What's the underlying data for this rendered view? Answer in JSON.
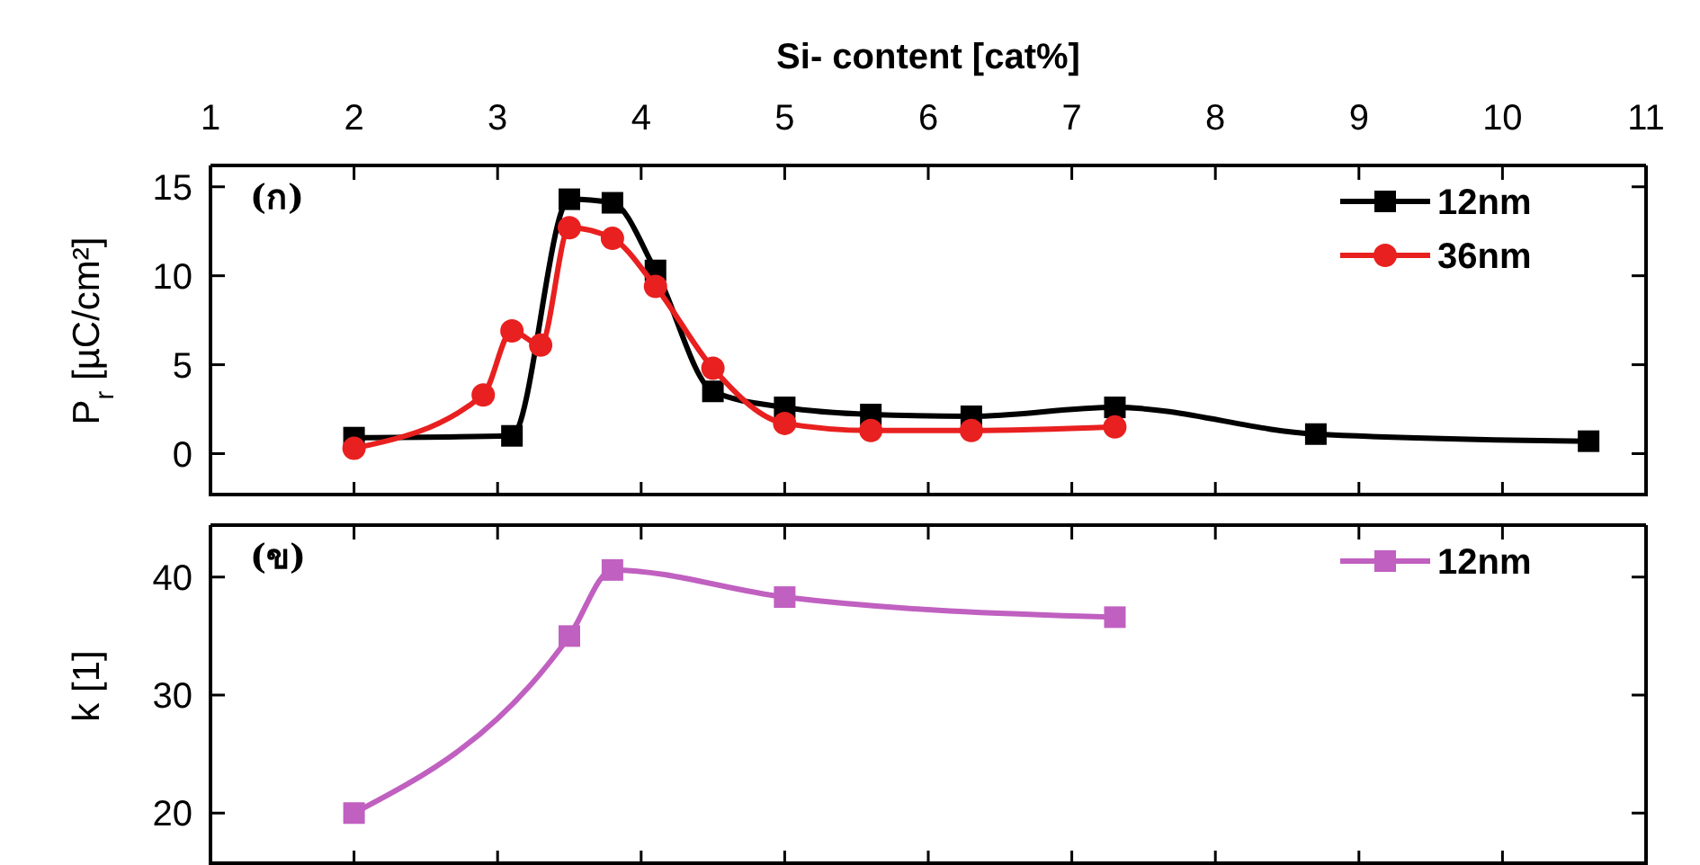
{
  "chart_data": [
    {
      "type": "line",
      "xlabel": "Si- content [cat%]",
      "ylabel": "P$_{r}$ [µC/cm²]",
      "xlim": [
        1,
        11
      ],
      "xticks": [
        1,
        2,
        3,
        4,
        5,
        6,
        7,
        8,
        9,
        10,
        11
      ],
      "ylim": [
        -2.4,
        16.2
      ],
      "yticks": [
        0,
        5,
        10,
        15
      ],
      "grid": false,
      "legend": "top right",
      "annotations": [
        "(ก)"
      ],
      "series": [
        {
          "name": "12nm",
          "color": "#000000",
          "marker": "square",
          "x": [
            2,
            3.1,
            3.5,
            3.8,
            4.1,
            4.5,
            5,
            5.6,
            6.3,
            7.3,
            8.7,
            10.6
          ],
          "values": [
            0.9,
            1.0,
            14.3,
            14.1,
            10.3,
            3.5,
            2.6,
            2.2,
            2.1,
            2.6,
            1.1,
            0.7
          ]
        },
        {
          "name": "36nm",
          "color": "#e8201f",
          "marker": "circle",
          "x": [
            2,
            2.9,
            3.1,
            3.3,
            3.5,
            3.8,
            4.1,
            4.5,
            5,
            5.6,
            6.3,
            7.3
          ],
          "values": [
            0.3,
            3.3,
            6.9,
            6.1,
            12.7,
            12.1,
            9.4,
            4.8,
            1.7,
            1.3,
            1.3,
            1.5
          ]
        }
      ]
    },
    {
      "type": "line",
      "ylabel": "k [1]",
      "xlim": [
        1,
        11
      ],
      "xticks": [
        1,
        2,
        3,
        4,
        5,
        6,
        7,
        8,
        9,
        10,
        11
      ],
      "ylim": [
        15.6,
        44.4
      ],
      "yticks": [
        20,
        30,
        40
      ],
      "grid": false,
      "legend": "top right",
      "tick_labels": "y",
      "annotations": [
        "(ข)"
      ],
      "series": [
        {
          "name": "12nm",
          "color": "#c060c0",
          "marker": "square",
          "x": [
            2,
            3.5,
            3.8,
            5,
            7.3
          ],
          "values": [
            20,
            35,
            40.6,
            38.3,
            36.6
          ]
        }
      ]
    }
  ]
}
